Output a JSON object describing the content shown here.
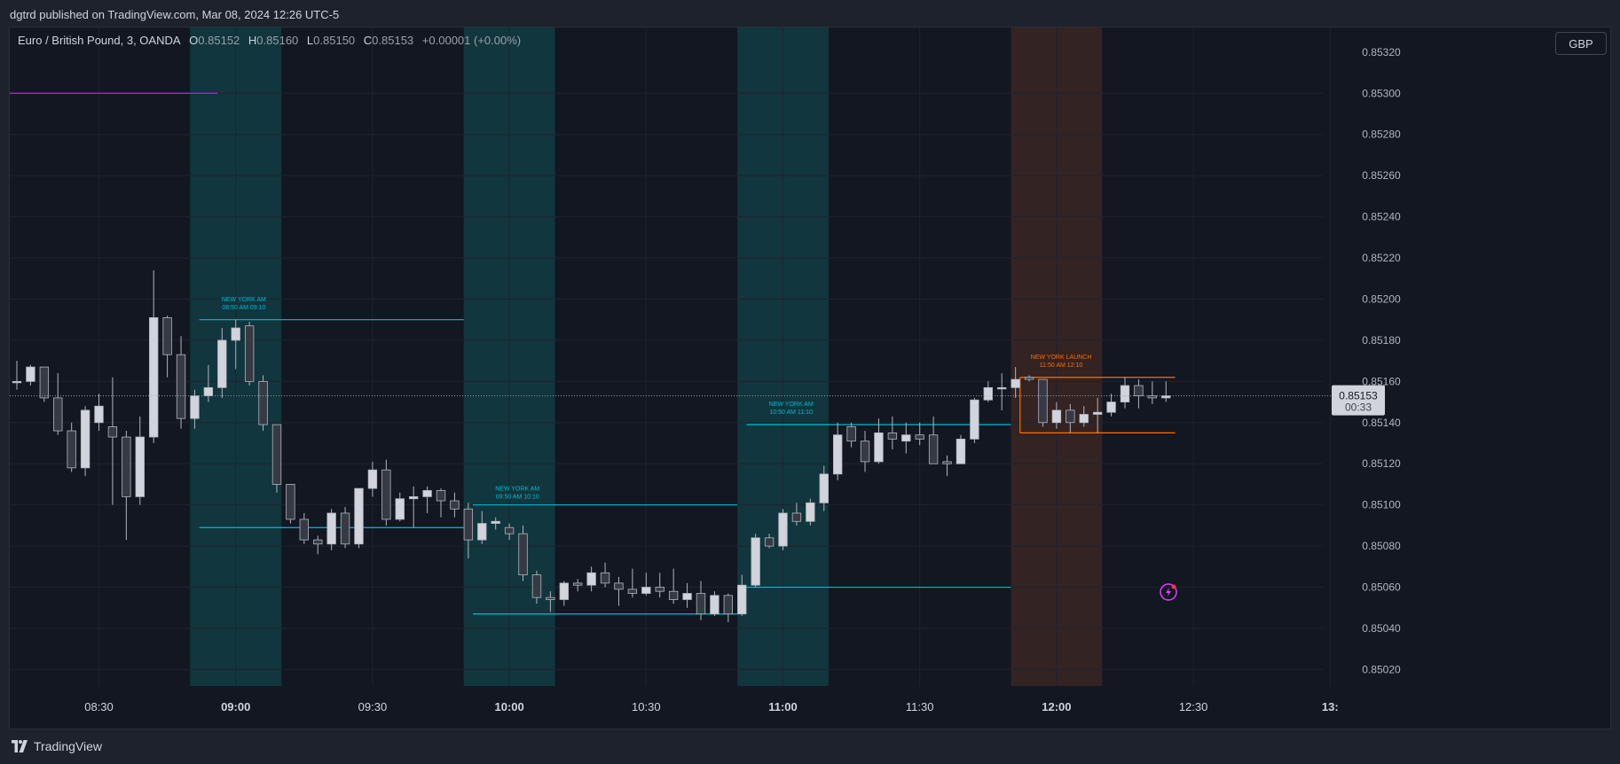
{
  "header": {
    "published_line": "dgtrd published on TradingView.com, Mar 08, 2024 12:26 UTC-5"
  },
  "legend": {
    "symbol": "Euro / British Pound, 3, OANDA",
    "open_label": "O",
    "open": "0.85152",
    "high_label": "H",
    "high": "0.85160",
    "low_label": "L",
    "low": "0.85150",
    "close_label": "C",
    "close": "0.85153",
    "change": "+0.00001 (+0.00%)"
  },
  "currency_button": "GBP",
  "brand": "TradingView",
  "price_label": {
    "value": "0.85153",
    "countdown": "00:33"
  },
  "colors": {
    "session_am": "#00bcd4",
    "session_launch": "#ff6d00",
    "candle_up": "#d1d4dc",
    "candle_down": "#363a45",
    "wick": "#b2b5be",
    "purple_line": "#9c27b0",
    "background": "#131722",
    "accent_badge": "#e040fb"
  },
  "chart_data": {
    "type": "candlestick",
    "symbol": "EUR/GBP",
    "timeframe_minutes": 3,
    "ylim": [
      0.85012,
      0.85332
    ],
    "y_ticks": [
      0.853,
      0.8528,
      0.8526,
      0.8524,
      0.8522,
      0.852,
      0.8518,
      0.8516,
      0.8514,
      0.8512,
      0.851,
      0.8508,
      0.8506,
      0.8504,
      0.8502
    ],
    "y_tick_labels": [
      "0.85300",
      "0.85280",
      "0.85260",
      "0.85240",
      "0.85220",
      "0.85200",
      "0.85180",
      "0.85160",
      "0.85140",
      "0.85120",
      "0.85100",
      "0.85080",
      "0.85060",
      "0.85040",
      "0.85020"
    ],
    "y_partial_label": "0.85320",
    "x_ticks": [
      "08:30",
      "09:00",
      "09:30",
      "10:00",
      "10:30",
      "11:00",
      "11:30",
      "12:00",
      "12:30",
      "13:"
    ],
    "x_tick_bold": [
      false,
      true,
      false,
      true,
      false,
      true,
      false,
      true,
      false,
      true
    ],
    "time_range": [
      "08:12",
      "12:24"
    ],
    "x_axis_end": "13:05",
    "candles": [
      {
        "t": "08:12",
        "o": 0.8516,
        "h": 0.8517,
        "l": 0.85156,
        "c": 0.8516
      },
      {
        "t": "08:15",
        "o": 0.8516,
        "h": 0.85168,
        "l": 0.85158,
        "c": 0.85167
      },
      {
        "t": "08:18",
        "o": 0.85167,
        "h": 0.85167,
        "l": 0.8515,
        "c": 0.85152
      },
      {
        "t": "08:21",
        "o": 0.85152,
        "h": 0.85164,
        "l": 0.85134,
        "c": 0.85136
      },
      {
        "t": "08:24",
        "o": 0.85136,
        "h": 0.8514,
        "l": 0.85116,
        "c": 0.85118
      },
      {
        "t": "08:27",
        "o": 0.85118,
        "h": 0.85148,
        "l": 0.85114,
        "c": 0.85146
      },
      {
        "t": "08:30",
        "o": 0.8514,
        "h": 0.85154,
        "l": 0.85136,
        "c": 0.85148
      },
      {
        "t": "08:33",
        "o": 0.85138,
        "h": 0.85162,
        "l": 0.851,
        "c": 0.85133
      },
      {
        "t": "08:36",
        "o": 0.85133,
        "h": 0.85136,
        "l": 0.85083,
        "c": 0.85104
      },
      {
        "t": "08:39",
        "o": 0.85104,
        "h": 0.85143,
        "l": 0.851,
        "c": 0.85133
      },
      {
        "t": "08:42",
        "o": 0.85133,
        "h": 0.85214,
        "l": 0.8513,
        "c": 0.85191
      },
      {
        "t": "08:45",
        "o": 0.85191,
        "h": 0.85192,
        "l": 0.85162,
        "c": 0.85173
      },
      {
        "t": "08:48",
        "o": 0.85173,
        "h": 0.85182,
        "l": 0.85137,
        "c": 0.85142
      },
      {
        "t": "08:51",
        "o": 0.85142,
        "h": 0.85156,
        "l": 0.85137,
        "c": 0.85153
      },
      {
        "t": "08:54",
        "o": 0.85153,
        "h": 0.85168,
        "l": 0.8515,
        "c": 0.85157
      },
      {
        "t": "08:57",
        "o": 0.85157,
        "h": 0.85186,
        "l": 0.85152,
        "c": 0.8518
      },
      {
        "t": "09:00",
        "o": 0.8518,
        "h": 0.8519,
        "l": 0.85166,
        "c": 0.85186
      },
      {
        "t": "09:03",
        "o": 0.85187,
        "h": 0.85189,
        "l": 0.85158,
        "c": 0.8516
      },
      {
        "t": "09:06",
        "o": 0.8516,
        "h": 0.85163,
        "l": 0.85136,
        "c": 0.85139
      },
      {
        "t": "09:09",
        "o": 0.85139,
        "h": 0.85139,
        "l": 0.85106,
        "c": 0.8511
      },
      {
        "t": "09:12",
        "o": 0.8511,
        "h": 0.8511,
        "l": 0.85091,
        "c": 0.85093
      },
      {
        "t": "09:15",
        "o": 0.85093,
        "h": 0.85096,
        "l": 0.85081,
        "c": 0.85083
      },
      {
        "t": "09:18",
        "o": 0.85083,
        "h": 0.85085,
        "l": 0.85076,
        "c": 0.85081
      },
      {
        "t": "09:21",
        "o": 0.85081,
        "h": 0.85098,
        "l": 0.85078,
        "c": 0.85096
      },
      {
        "t": "09:24",
        "o": 0.85096,
        "h": 0.85099,
        "l": 0.85079,
        "c": 0.85081
      },
      {
        "t": "09:27",
        "o": 0.85081,
        "h": 0.85108,
        "l": 0.85079,
        "c": 0.85108
      },
      {
        "t": "09:30",
        "o": 0.85108,
        "h": 0.85121,
        "l": 0.85104,
        "c": 0.85117
      },
      {
        "t": "09:33",
        "o": 0.85117,
        "h": 0.85122,
        "l": 0.8509,
        "c": 0.85093
      },
      {
        "t": "09:36",
        "o": 0.85093,
        "h": 0.85106,
        "l": 0.85092,
        "c": 0.85103
      },
      {
        "t": "09:39",
        "o": 0.85103,
        "h": 0.85109,
        "l": 0.85089,
        "c": 0.85104
      },
      {
        "t": "09:42",
        "o": 0.85104,
        "h": 0.85109,
        "l": 0.85096,
        "c": 0.85107
      },
      {
        "t": "09:45",
        "o": 0.85107,
        "h": 0.85108,
        "l": 0.85094,
        "c": 0.85102
      },
      {
        "t": "09:48",
        "o": 0.85102,
        "h": 0.85106,
        "l": 0.85094,
        "c": 0.85098
      },
      {
        "t": "09:51",
        "o": 0.85098,
        "h": 0.85101,
        "l": 0.85074,
        "c": 0.85083
      },
      {
        "t": "09:54",
        "o": 0.85083,
        "h": 0.85097,
        "l": 0.85081,
        "c": 0.85091
      },
      {
        "t": "09:57",
        "o": 0.85091,
        "h": 0.85094,
        "l": 0.85088,
        "c": 0.85092
      },
      {
        "t": "10:00",
        "o": 0.85089,
        "h": 0.85091,
        "l": 0.85083,
        "c": 0.85086
      },
      {
        "t": "10:03",
        "o": 0.85086,
        "h": 0.8509,
        "l": 0.85063,
        "c": 0.85066
      },
      {
        "t": "10:06",
        "o": 0.85066,
        "h": 0.85068,
        "l": 0.85052,
        "c": 0.85055
      },
      {
        "t": "10:09",
        "o": 0.85055,
        "h": 0.85058,
        "l": 0.85048,
        "c": 0.85054
      },
      {
        "t": "10:12",
        "o": 0.85054,
        "h": 0.85063,
        "l": 0.85051,
        "c": 0.85062
      },
      {
        "t": "10:15",
        "o": 0.85062,
        "h": 0.85064,
        "l": 0.85058,
        "c": 0.85061
      },
      {
        "t": "10:18",
        "o": 0.85061,
        "h": 0.8507,
        "l": 0.85058,
        "c": 0.85067
      },
      {
        "t": "10:21",
        "o": 0.85067,
        "h": 0.85072,
        "l": 0.8506,
        "c": 0.85062
      },
      {
        "t": "10:24",
        "o": 0.85062,
        "h": 0.85065,
        "l": 0.85051,
        "c": 0.85059
      },
      {
        "t": "10:27",
        "o": 0.85059,
        "h": 0.85069,
        "l": 0.85055,
        "c": 0.85057
      },
      {
        "t": "10:30",
        "o": 0.85057,
        "h": 0.85067,
        "l": 0.85056,
        "c": 0.8506
      },
      {
        "t": "10:33",
        "o": 0.8506,
        "h": 0.85067,
        "l": 0.85055,
        "c": 0.85058
      },
      {
        "t": "10:36",
        "o": 0.85058,
        "h": 0.85069,
        "l": 0.85052,
        "c": 0.85054
      },
      {
        "t": "10:39",
        "o": 0.85054,
        "h": 0.85062,
        "l": 0.8505,
        "c": 0.85057
      },
      {
        "t": "10:42",
        "o": 0.85057,
        "h": 0.85063,
        "l": 0.85044,
        "c": 0.85047
      },
      {
        "t": "10:45",
        "o": 0.85047,
        "h": 0.85058,
        "l": 0.85046,
        "c": 0.85056
      },
      {
        "t": "10:48",
        "o": 0.85056,
        "h": 0.85057,
        "l": 0.85043,
        "c": 0.85047
      },
      {
        "t": "10:51",
        "o": 0.85047,
        "h": 0.85066,
        "l": 0.85046,
        "c": 0.85061
      },
      {
        "t": "10:54",
        "o": 0.85061,
        "h": 0.85086,
        "l": 0.8506,
        "c": 0.85084
      },
      {
        "t": "10:57",
        "o": 0.85084,
        "h": 0.85086,
        "l": 0.85079,
        "c": 0.8508
      },
      {
        "t": "11:00",
        "o": 0.8508,
        "h": 0.85098,
        "l": 0.85078,
        "c": 0.85096
      },
      {
        "t": "11:03",
        "o": 0.85096,
        "h": 0.85101,
        "l": 0.8509,
        "c": 0.85092
      },
      {
        "t": "11:06",
        "o": 0.85092,
        "h": 0.85103,
        "l": 0.8509,
        "c": 0.85101
      },
      {
        "t": "11:09",
        "o": 0.85101,
        "h": 0.85119,
        "l": 0.85097,
        "c": 0.85115
      },
      {
        "t": "11:12",
        "o": 0.85115,
        "h": 0.8514,
        "l": 0.85112,
        "c": 0.85134
      },
      {
        "t": "11:15",
        "o": 0.85138,
        "h": 0.8514,
        "l": 0.85128,
        "c": 0.85131
      },
      {
        "t": "11:18",
        "o": 0.85131,
        "h": 0.85136,
        "l": 0.85116,
        "c": 0.85121
      },
      {
        "t": "11:21",
        "o": 0.85121,
        "h": 0.85142,
        "l": 0.8512,
        "c": 0.85135
      },
      {
        "t": "11:24",
        "o": 0.85135,
        "h": 0.85143,
        "l": 0.85127,
        "c": 0.85132
      },
      {
        "t": "11:27",
        "o": 0.85131,
        "h": 0.8514,
        "l": 0.85125,
        "c": 0.85134
      },
      {
        "t": "11:30",
        "o": 0.85134,
        "h": 0.8514,
        "l": 0.85129,
        "c": 0.85132
      },
      {
        "t": "11:33",
        "o": 0.85134,
        "h": 0.85143,
        "l": 0.8512,
        "c": 0.8512
      },
      {
        "t": "11:36",
        "o": 0.85121,
        "h": 0.85124,
        "l": 0.85114,
        "c": 0.8512
      },
      {
        "t": "11:39",
        "o": 0.8512,
        "h": 0.85134,
        "l": 0.8512,
        "c": 0.85132
      },
      {
        "t": "11:42",
        "o": 0.85132,
        "h": 0.85152,
        "l": 0.8513,
        "c": 0.85151
      },
      {
        "t": "11:45",
        "o": 0.85151,
        "h": 0.8516,
        "l": 0.8515,
        "c": 0.85157
      },
      {
        "t": "11:48",
        "o": 0.85157,
        "h": 0.85164,
        "l": 0.85146,
        "c": 0.85157
      },
      {
        "t": "11:51",
        "o": 0.85157,
        "h": 0.85167,
        "l": 0.85152,
        "c": 0.85161
      },
      {
        "t": "11:54",
        "o": 0.85162,
        "h": 0.85163,
        "l": 0.8516,
        "c": 0.85161
      },
      {
        "t": "11:57",
        "o": 0.85161,
        "h": 0.85161,
        "l": 0.85138,
        "c": 0.8514
      },
      {
        "t": "12:00",
        "o": 0.8514,
        "h": 0.8515,
        "l": 0.85137,
        "c": 0.85146
      },
      {
        "t": "12:03",
        "o": 0.85146,
        "h": 0.85149,
        "l": 0.85135,
        "c": 0.8514
      },
      {
        "t": "12:06",
        "o": 0.8514,
        "h": 0.85148,
        "l": 0.85138,
        "c": 0.85144
      },
      {
        "t": "12:09",
        "o": 0.85144,
        "h": 0.85152,
        "l": 0.85135,
        "c": 0.85145
      },
      {
        "t": "12:12",
        "o": 0.85145,
        "h": 0.85154,
        "l": 0.85143,
        "c": 0.8515
      },
      {
        "t": "12:15",
        "o": 0.8515,
        "h": 0.85162,
        "l": 0.85147,
        "c": 0.85158
      },
      {
        "t": "12:18",
        "o": 0.85158,
        "h": 0.85161,
        "l": 0.85147,
        "c": 0.85153
      },
      {
        "t": "12:21",
        "o": 0.85153,
        "h": 0.8516,
        "l": 0.85149,
        "c": 0.85152
      },
      {
        "t": "12:24",
        "o": 0.85152,
        "h": 0.8516,
        "l": 0.8515,
        "c": 0.85153
      }
    ],
    "current_price": 0.85153,
    "purple_level": {
      "price": 0.853,
      "from": "08:05",
      "to": "08:56"
    },
    "sessions": [
      {
        "start": "08:50",
        "end": "09:10",
        "kind": "am",
        "title": "NEW YORK AM",
        "time_label": "08:50 AM 09:10",
        "high": 0.8519,
        "low": 0.85089,
        "line_start": "08:52",
        "line_end": "09:50",
        "label_price": 0.85199
      },
      {
        "start": "09:50",
        "end": "10:10",
        "kind": "am",
        "title": "NEW YORK AM",
        "time_label": "09:50 AM 10:10",
        "high": 0.851,
        "low": 0.85047,
        "line_start": "09:52",
        "line_end": "10:50",
        "label_price": 0.85107
      },
      {
        "start": "10:50",
        "end": "11:10",
        "kind": "am",
        "title": "NEW YORK AM",
        "time_label": "10:50 AM 11:10",
        "high": 0.85139,
        "low": 0.8506,
        "line_start": "10:52",
        "line_end": "11:50",
        "label_price": 0.85148
      },
      {
        "start": "11:50",
        "end": "12:10",
        "kind": "launch",
        "title": "NEW YORK LAUNCH",
        "time_label": "11:50 AM 12:10",
        "high": 0.85162,
        "low": 0.85135,
        "line_start": "11:52",
        "line_end": "12:26",
        "label_price": 0.85171
      }
    ]
  }
}
